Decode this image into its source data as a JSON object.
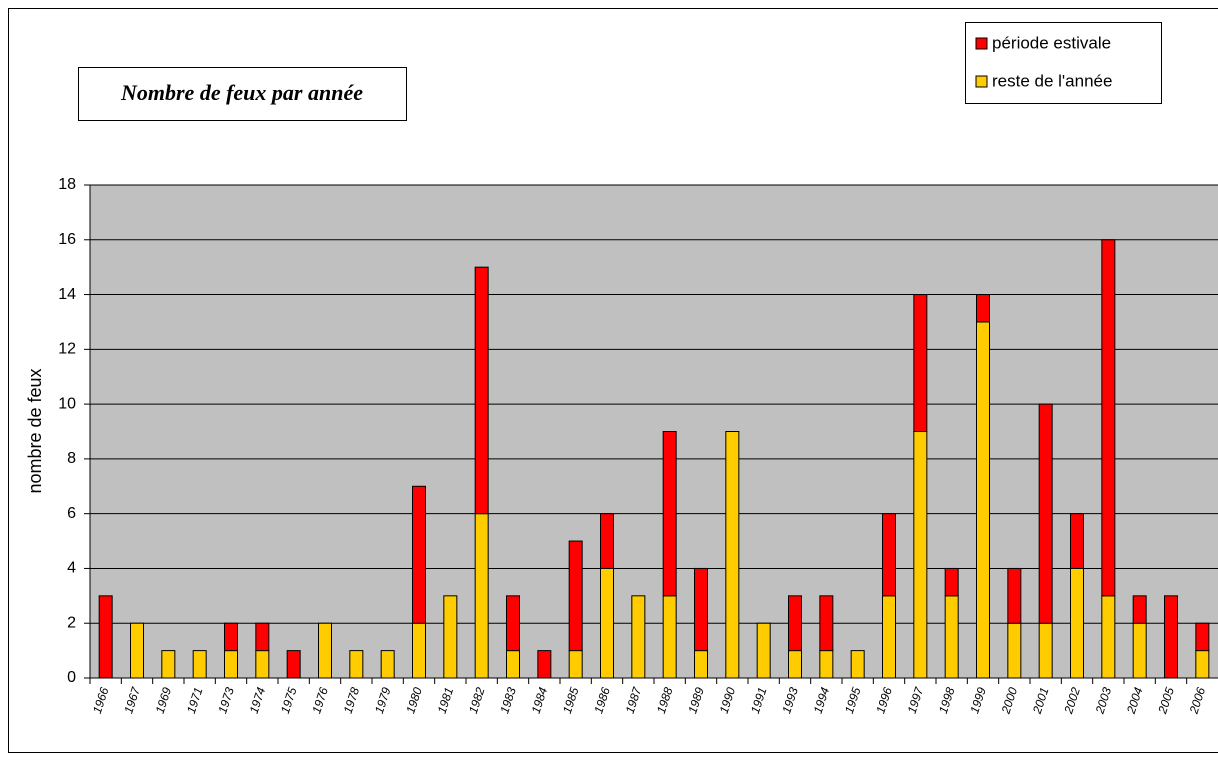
{
  "chart_data": {
    "type": "stacked_bar",
    "title": "Nombre de feux par année",
    "y_label": "nombre de feux",
    "categories": [
      "1966",
      "1967",
      "1969",
      "1971",
      "1973",
      "1974",
      "1975",
      "1976",
      "1978",
      "1979",
      "1980",
      "1981",
      "1982",
      "1983",
      "1984",
      "1985",
      "1986",
      "1987",
      "1988",
      "1989",
      "1990",
      "1991",
      "1993",
      "1994",
      "1995",
      "1996",
      "1997",
      "1998",
      "1999",
      "2000",
      "2001",
      "2002",
      "2003",
      "2004",
      "2005",
      "2006"
    ],
    "series": [
      {
        "name": "reste de l'année",
        "color": "#ffcc00",
        "values": [
          0,
          2,
          1,
          1,
          1,
          1,
          0,
          2,
          1,
          1,
          2,
          3,
          6,
          1,
          0,
          1,
          4,
          3,
          3,
          1,
          9,
          2,
          1,
          1,
          1,
          3,
          9,
          3,
          13,
          2,
          2,
          4,
          3,
          2,
          0,
          1
        ]
      },
      {
        "name": "période estivale",
        "color": "#ff0000",
        "values": [
          3,
          0,
          0,
          0,
          1,
          1,
          1,
          0,
          0,
          0,
          5,
          0,
          9,
          2,
          1,
          4,
          2,
          0,
          6,
          3,
          0,
          0,
          2,
          2,
          0,
          3,
          5,
          1,
          1,
          2,
          8,
          2,
          13,
          1,
          3,
          1
        ]
      }
    ],
    "ylim": [
      0,
      18
    ],
    "yticks": [
      0,
      2,
      4,
      6,
      8,
      10,
      12,
      14,
      16,
      18
    ],
    "grid": true
  }
}
